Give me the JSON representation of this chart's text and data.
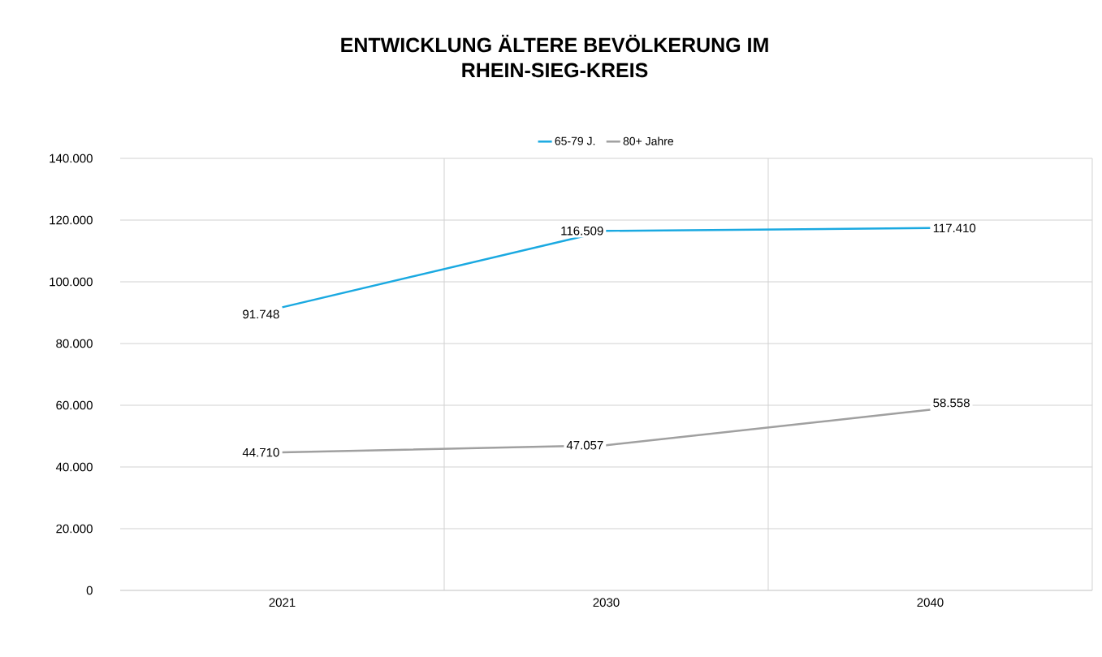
{
  "chart_data": {
    "type": "line",
    "title": "ENTWICKLUNG ÄLTERE BEVÖLKERUNG IM RHEIN-SIEG-KREIS",
    "categories": [
      "2021",
      "2030",
      "2040"
    ],
    "series": [
      {
        "name": "65-79 J.",
        "color": "#1aa9e1",
        "values": [
          91748,
          116509,
          117410
        ],
        "value_labels": [
          "91.748",
          "116.509",
          "117.410"
        ]
      },
      {
        "name": "80+ Jahre",
        "color": "#a0a0a0",
        "values": [
          44710,
          47057,
          58558
        ],
        "value_labels": [
          "44.710",
          "47.057",
          "58.558"
        ]
      }
    ],
    "ylim": [
      0,
      140000
    ],
    "yticks": [
      0,
      {
        "value": 20000,
        "label": "20.000"
      },
      {
        "value": 40000,
        "label": "40.000"
      },
      {
        "value": 60000,
        "label": "60.000"
      },
      {
        "value": 80000,
        "label": "80.000"
      },
      {
        "value": 100000,
        "label": "100.000"
      },
      {
        "value": 120000,
        "label": "120.000"
      },
      {
        "value": 140000,
        "label": "140.000"
      }
    ],
    "grid": true,
    "legend": "top"
  }
}
